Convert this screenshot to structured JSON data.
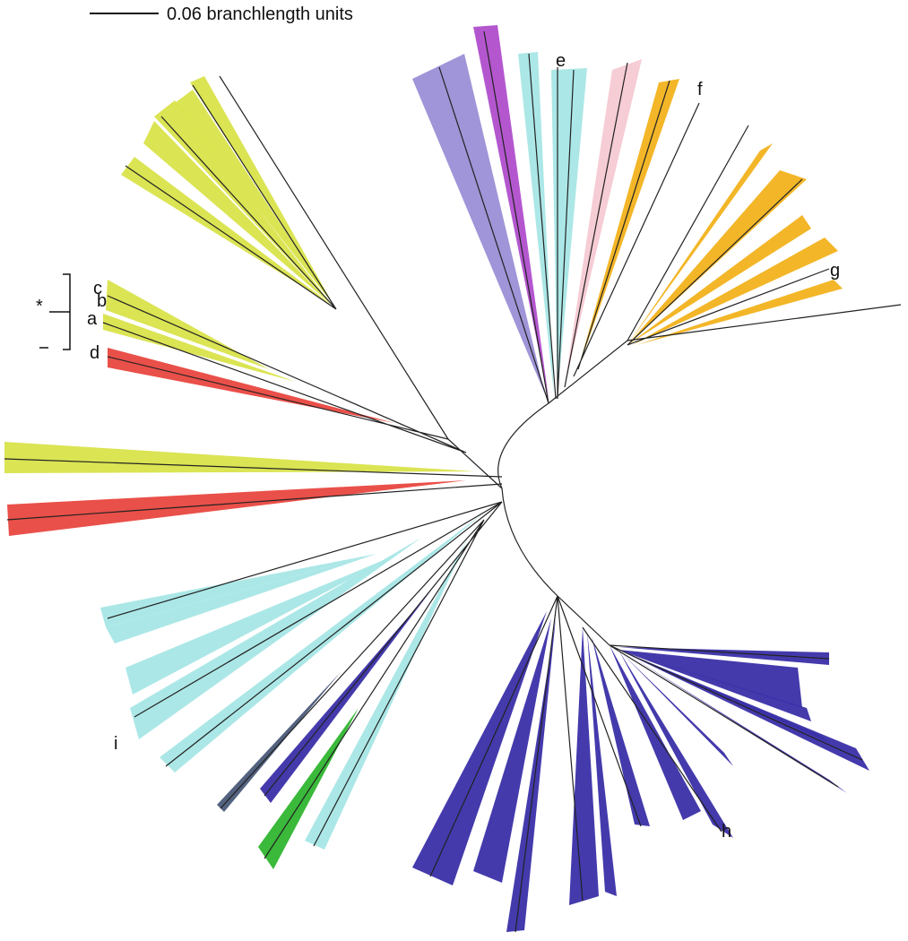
{
  "scale_bar": {
    "label": "0.06 branchlength units"
  },
  "bracket": {
    "label": "*"
  },
  "labels": {
    "a": "a",
    "b": "b",
    "c": "c",
    "d": "d",
    "e": "e",
    "f": "f",
    "g": "g",
    "h": "h",
    "i": "i"
  }
}
